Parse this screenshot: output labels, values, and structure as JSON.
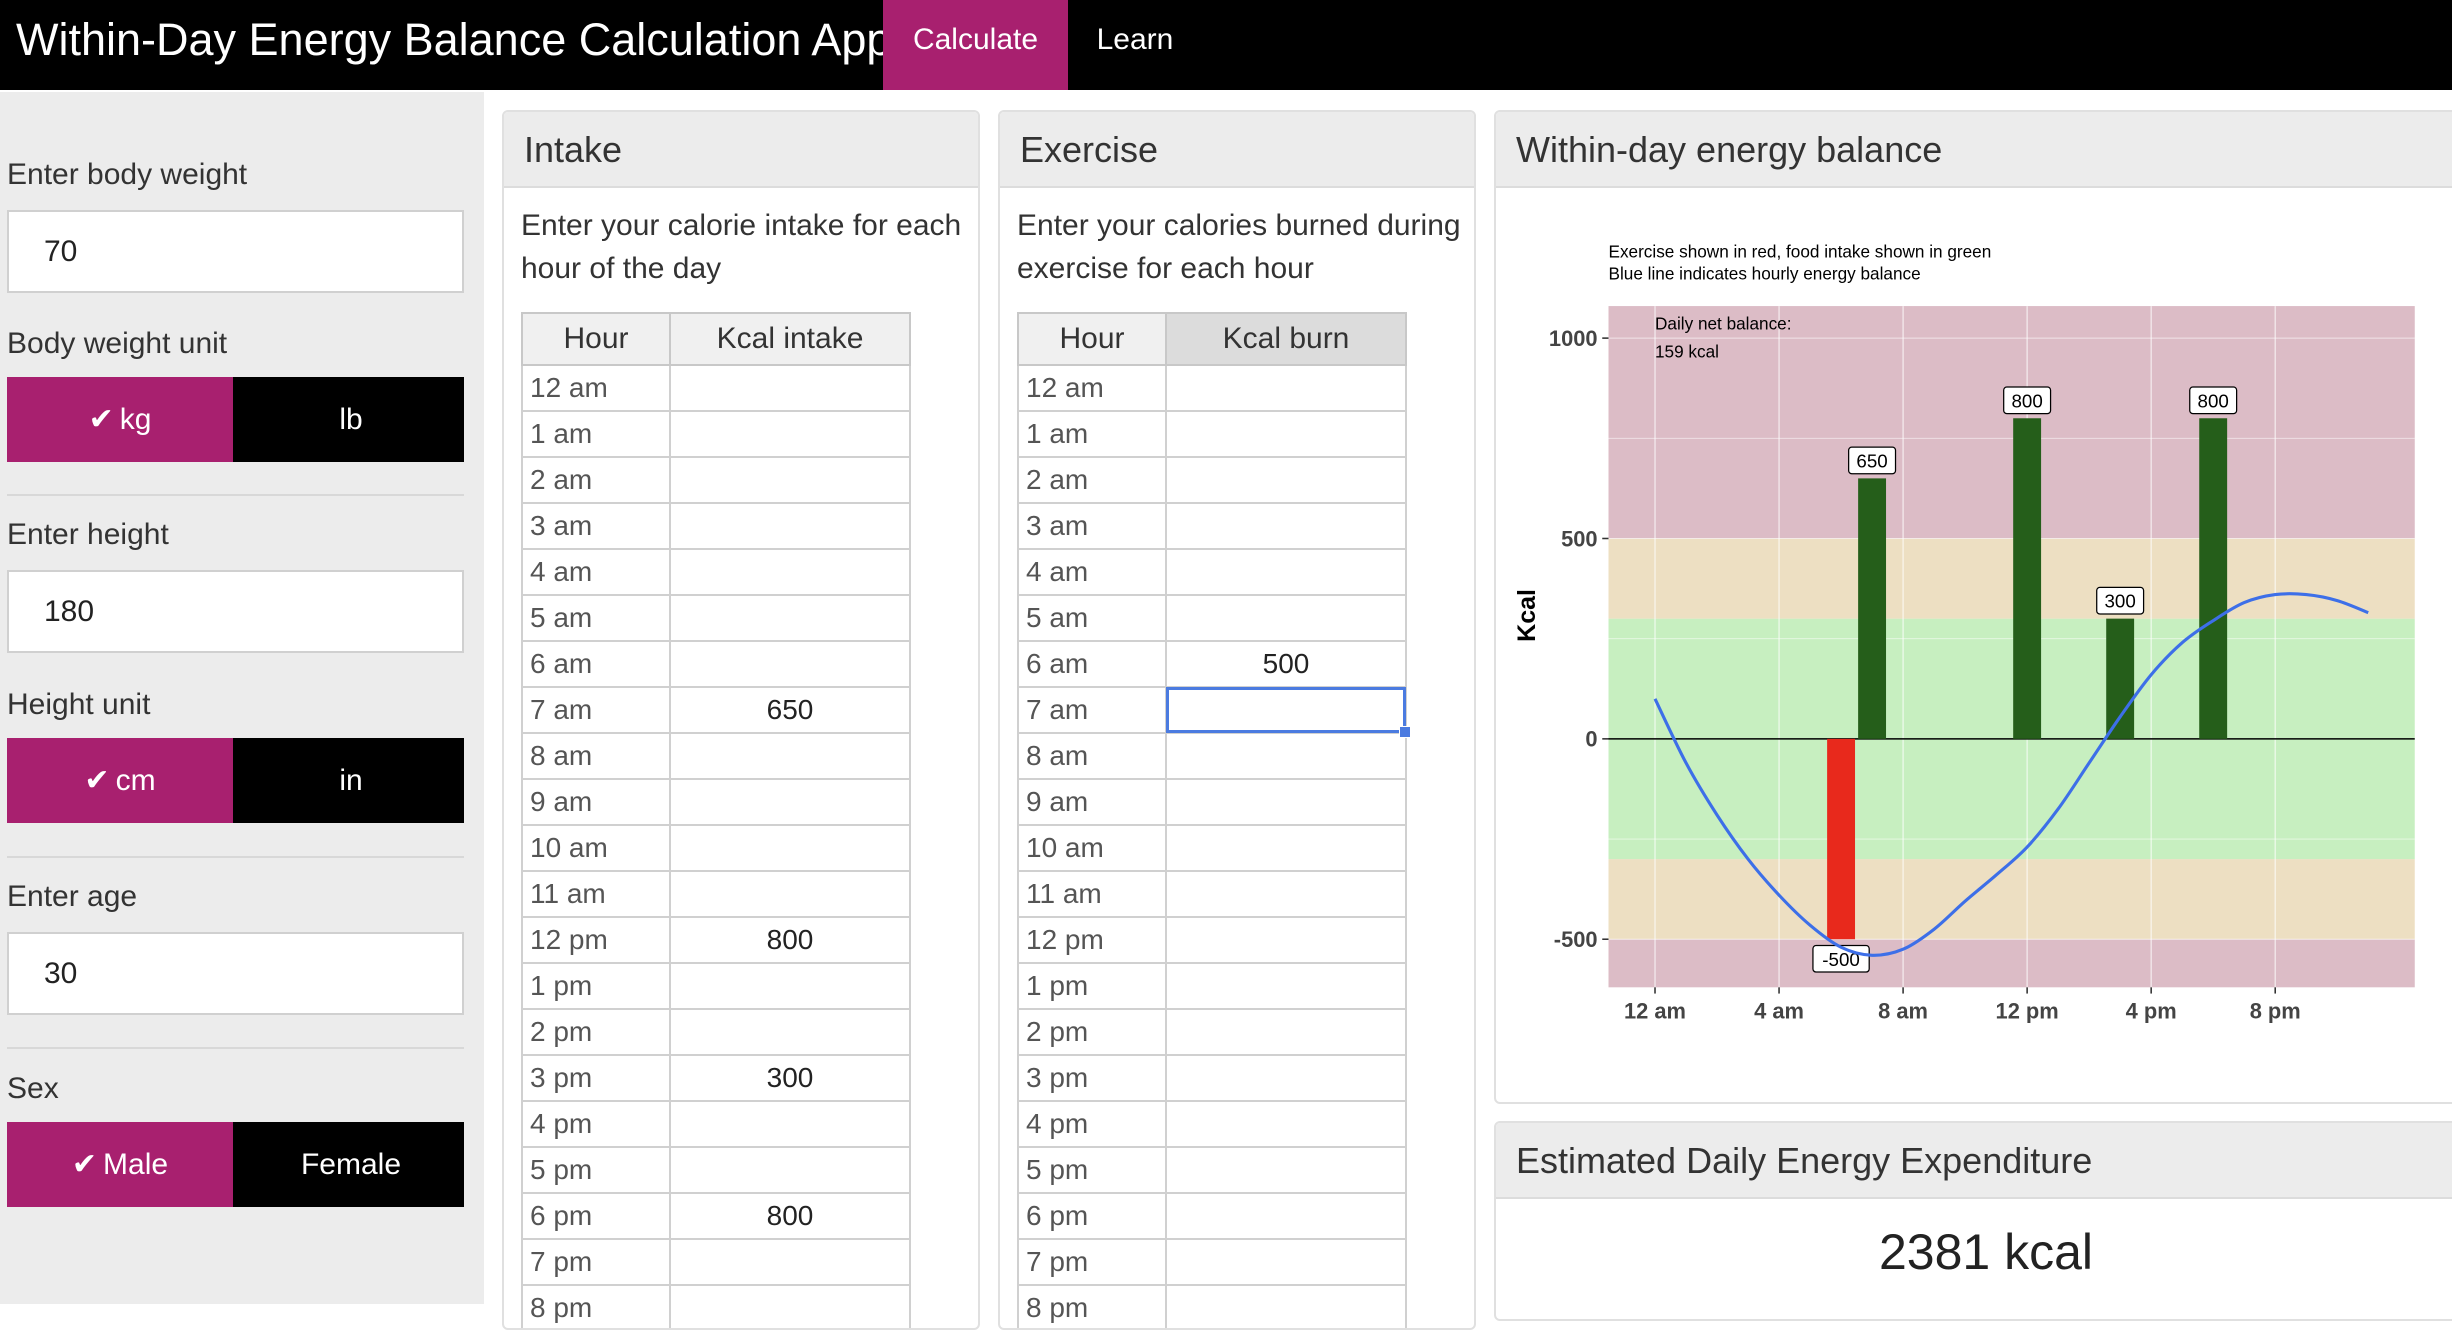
{
  "app": {
    "title": "Within-Day Energy Balance Calculation App",
    "tabs": [
      "Calculate",
      "Learn"
    ]
  },
  "sidebar": {
    "weight_label": "Enter body weight",
    "weight_value": "70",
    "weight_unit_label": "Body weight unit",
    "weight_units": [
      "kg",
      "lb"
    ],
    "height_label": "Enter height",
    "height_value": "180",
    "height_unit_label": "Height unit",
    "height_units": [
      "cm",
      "in"
    ],
    "age_label": "Enter age",
    "age_value": "30",
    "sex_label": "Sex",
    "sex_options": [
      "Male",
      "Female"
    ],
    "check_glyph": "✔"
  },
  "intake": {
    "title": "Intake",
    "description": "Enter your calorie intake for each hour of the day",
    "col_hour": "Hour",
    "col_value": "Kcal intake",
    "rows": [
      {
        "hour": "12 am",
        "value": ""
      },
      {
        "hour": "1 am",
        "value": ""
      },
      {
        "hour": "2 am",
        "value": ""
      },
      {
        "hour": "3 am",
        "value": ""
      },
      {
        "hour": "4 am",
        "value": ""
      },
      {
        "hour": "5 am",
        "value": ""
      },
      {
        "hour": "6 am",
        "value": ""
      },
      {
        "hour": "7 am",
        "value": "650"
      },
      {
        "hour": "8 am",
        "value": ""
      },
      {
        "hour": "9 am",
        "value": ""
      },
      {
        "hour": "10 am",
        "value": ""
      },
      {
        "hour": "11 am",
        "value": ""
      },
      {
        "hour": "12 pm",
        "value": "800"
      },
      {
        "hour": "1 pm",
        "value": ""
      },
      {
        "hour": "2 pm",
        "value": ""
      },
      {
        "hour": "3 pm",
        "value": "300"
      },
      {
        "hour": "4 pm",
        "value": ""
      },
      {
        "hour": "5 pm",
        "value": ""
      },
      {
        "hour": "6 pm",
        "value": "800"
      },
      {
        "hour": "7 pm",
        "value": ""
      },
      {
        "hour": "8 pm",
        "value": ""
      }
    ]
  },
  "exercise": {
    "title": "Exercise",
    "description": "Enter your calories burned during exercise for each hour",
    "col_hour": "Hour",
    "col_value": "Kcal burn",
    "rows": [
      {
        "hour": "12 am",
        "value": ""
      },
      {
        "hour": "1 am",
        "value": ""
      },
      {
        "hour": "2 am",
        "value": ""
      },
      {
        "hour": "3 am",
        "value": ""
      },
      {
        "hour": "4 am",
        "value": ""
      },
      {
        "hour": "5 am",
        "value": ""
      },
      {
        "hour": "6 am",
        "value": "500"
      },
      {
        "hour": "7 am",
        "value": ""
      },
      {
        "hour": "8 am",
        "value": ""
      },
      {
        "hour": "9 am",
        "value": ""
      },
      {
        "hour": "10 am",
        "value": ""
      },
      {
        "hour": "11 am",
        "value": ""
      },
      {
        "hour": "12 pm",
        "value": ""
      },
      {
        "hour": "1 pm",
        "value": ""
      },
      {
        "hour": "2 pm",
        "value": ""
      },
      {
        "hour": "3 pm",
        "value": ""
      },
      {
        "hour": "4 pm",
        "value": ""
      },
      {
        "hour": "5 pm",
        "value": ""
      },
      {
        "hour": "6 pm",
        "value": ""
      },
      {
        "hour": "7 pm",
        "value": ""
      },
      {
        "hour": "8 pm",
        "value": ""
      }
    ]
  },
  "chart_panel": {
    "title": "Within-day energy balance"
  },
  "expenditure": {
    "title": "Estimated Daily Energy Expenditure",
    "value": "2381 kcal"
  },
  "colors": {
    "accent": "#a8206f",
    "food_bar": "#255e1a",
    "exercise_bar": "#e8291c",
    "balance_line": "#3d6fe8",
    "zone_red": "#dcbcc6",
    "zone_yellow": "#eddfc2",
    "zone_green": "#c7efc0"
  },
  "chart_data": {
    "type": "bar",
    "subtitle_line1": "Exercise shown in red, food intake shown in green",
    "subtitle_line2": "Blue line indicates  hourly energy balance",
    "ylabel": "Kcal",
    "ylim": [
      -620,
      1080
    ],
    "xlim": [
      -1.5,
      24.5
    ],
    "yticks": [
      1000,
      500,
      0,
      -500
    ],
    "ytick_labels": [
      "1000",
      "500",
      "0",
      "-500"
    ],
    "xticks": [
      0,
      4,
      8,
      12,
      16,
      20
    ],
    "xtick_labels": [
      "12 am",
      "4 am",
      "8 am",
      "12 pm",
      "4 pm",
      "8 pm"
    ],
    "zones": [
      {
        "from": -620,
        "to": -500,
        "zone": "red"
      },
      {
        "from": -500,
        "to": -300,
        "zone": "yellow"
      },
      {
        "from": -300,
        "to": 300,
        "zone": "green"
      },
      {
        "from": 300,
        "to": 500,
        "zone": "yellow"
      },
      {
        "from": 500,
        "to": 1080,
        "zone": "red"
      }
    ],
    "food_intake": [
      {
        "hour": 7,
        "value": 650,
        "label": "650"
      },
      {
        "hour": 12,
        "value": 800,
        "label": "800"
      },
      {
        "hour": 15,
        "value": 300,
        "label": "300"
      },
      {
        "hour": 18,
        "value": 800,
        "label": "800"
      }
    ],
    "exercise": [
      {
        "hour": 6,
        "value": -500,
        "label": "-500"
      }
    ],
    "balance_line": {
      "hours": [
        0,
        1,
        2,
        3,
        4,
        5,
        6,
        7,
        8,
        9,
        10,
        11,
        12,
        13,
        14,
        15,
        16,
        17,
        18,
        19,
        20,
        21,
        22,
        23
      ],
      "values": [
        100,
        -60,
        -190,
        -300,
        -390,
        -465,
        -520,
        -540,
        -525,
        -475,
        -405,
        -340,
        -270,
        -175,
        -60,
        55,
        160,
        240,
        295,
        340,
        360,
        360,
        345,
        315
      ]
    },
    "annotation_label": "Daily net balance:",
    "annotation_value": "159 kcal"
  }
}
